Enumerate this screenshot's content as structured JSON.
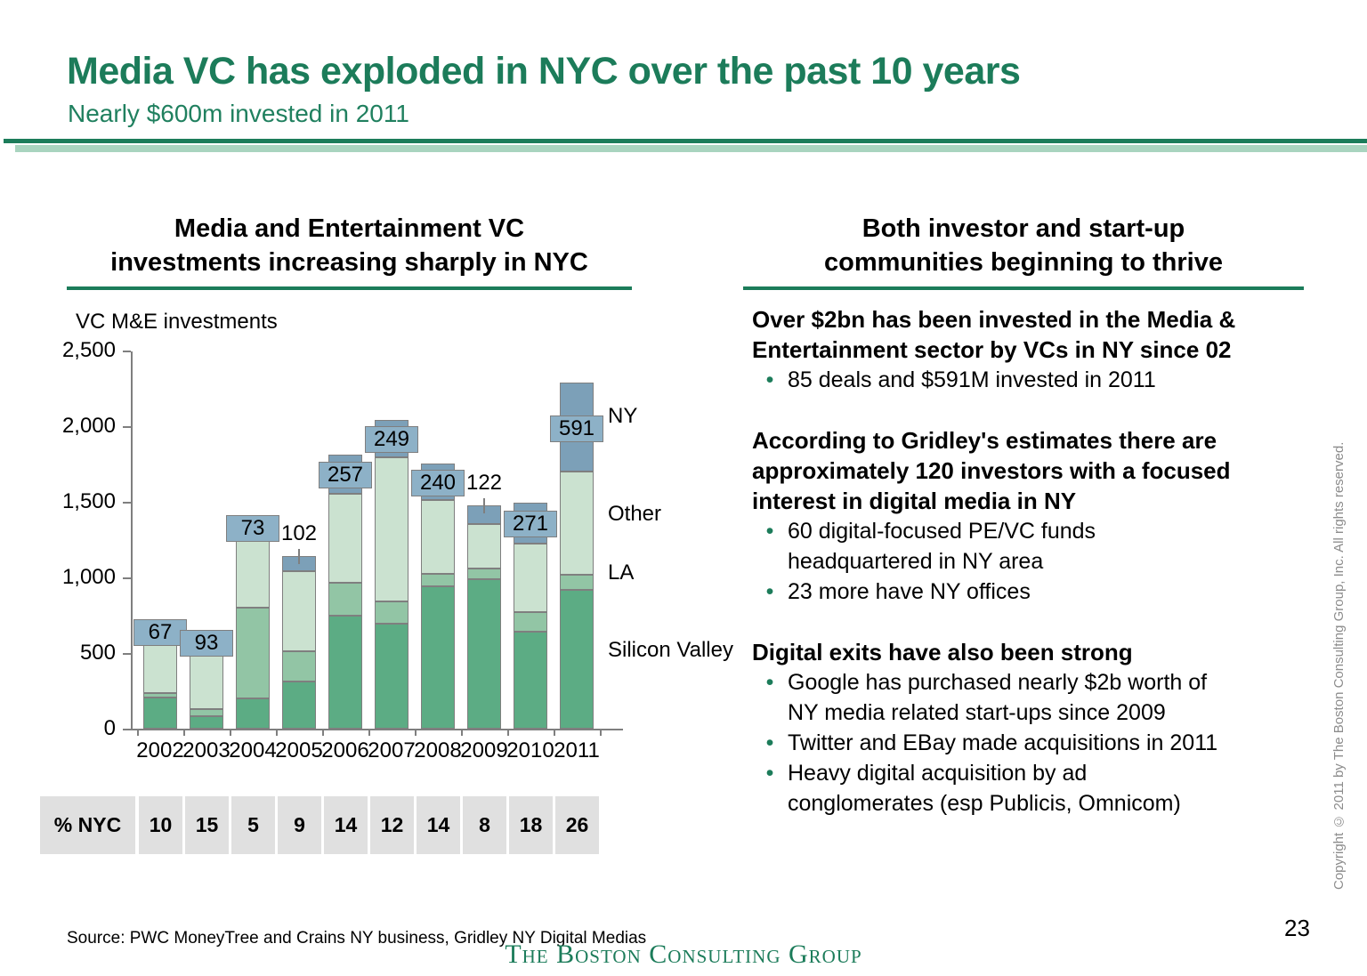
{
  "slide": {
    "title": "Media VC has exploded in NYC over the past 10 years",
    "subtitle": "Nearly $600m invested in 2011",
    "page_number": "23",
    "source": "Source: PWC MoneyTree and Crains NY business, Gridley NY Digital Medias",
    "logo": "The Boston Consulting Group",
    "copyright": "Copyright © 2011 by The Boston Consulting Group, Inc. All rights reserved.",
    "accent_green": "#1C7C5A",
    "light_green": "#A9D4BF"
  },
  "left_panel": {
    "header": "Media and Entertainment VC\ninvestments increasing sharply in NYC",
    "chart_axis_title": "VC M&E investments"
  },
  "right_panel": {
    "header": "Both investor and start-up\ncommunities beginning to thrive",
    "sections": [
      {
        "heading": "Over $2bn has been invested in the Media &\nEntertainment sector by VCs in NY since 02",
        "bullets": [
          "85 deals and $591M invested in 2011"
        ]
      },
      {
        "heading": "According to Gridley's estimates there are\napproximately 120 investors with a focused\ninterest in digital media in NY",
        "bullets": [
          "60 digital-focused PE/VC funds\nheadquartered in NY area",
          "23 more have NY offices"
        ]
      },
      {
        "heading": "Digital exits have also been strong",
        "bullets": [
          "Google has purchased nearly $2b worth of\nNY media related start-ups since 2009",
          "Twitter and EBay made acquisitions in 2011",
          "Heavy digital acquisition by ad\nconglomerates (esp Publicis, Omnicom)"
        ]
      }
    ]
  },
  "chart_data": {
    "type": "bar",
    "stacked": true,
    "title": "VC M&E investments",
    "categories": [
      "2002",
      "2003",
      "2004",
      "2005",
      "2006",
      "2007",
      "2008",
      "2009",
      "2010",
      "2011"
    ],
    "series": [
      {
        "name": "Silicon Valley",
        "color": "#5CAC84",
        "values": [
          205,
          85,
          195,
          312,
          745,
          700,
          935,
          990,
          645,
          910
        ]
      },
      {
        "name": "LA",
        "color": "#92C5A5",
        "values": [
          30,
          48,
          600,
          200,
          220,
          145,
          85,
          70,
          130,
          100
        ]
      },
      {
        "name": "Other",
        "color": "#CBE2D0",
        "values": [
          370,
          394,
          495,
          529,
          590,
          950,
          490,
          295,
          450,
          685
        ]
      },
      {
        "name": "NY",
        "color": "#7CA0B8",
        "values": [
          67,
          93,
          73,
          102,
          257,
          249,
          240,
          122,
          271,
          591
        ]
      }
    ],
    "ny_segment_labels": [
      "67",
      "93",
      "73",
      "102",
      "257",
      "249",
      "240",
      "122",
      "271",
      "591"
    ],
    "ny_label_boxed": [
      true,
      true,
      true,
      false,
      true,
      true,
      true,
      false,
      true,
      true
    ],
    "label_box_color": "#8DB1C7",
    "ylim": [
      0,
      2500
    ],
    "yticks": [
      0,
      500,
      1000,
      1500,
      2000,
      2500
    ],
    "ytick_labels": [
      "0",
      "500",
      "1,000",
      "1,500",
      "2,000",
      "2,500"
    ],
    "legend_position": "right",
    "legend_order": [
      "NY",
      "Other",
      "LA",
      "Silicon Valley"
    ],
    "pct_table": {
      "label": "% NYC",
      "values": [
        "10",
        "15",
        "5",
        "9",
        "14",
        "12",
        "14",
        "8",
        "18",
        "26"
      ]
    }
  }
}
